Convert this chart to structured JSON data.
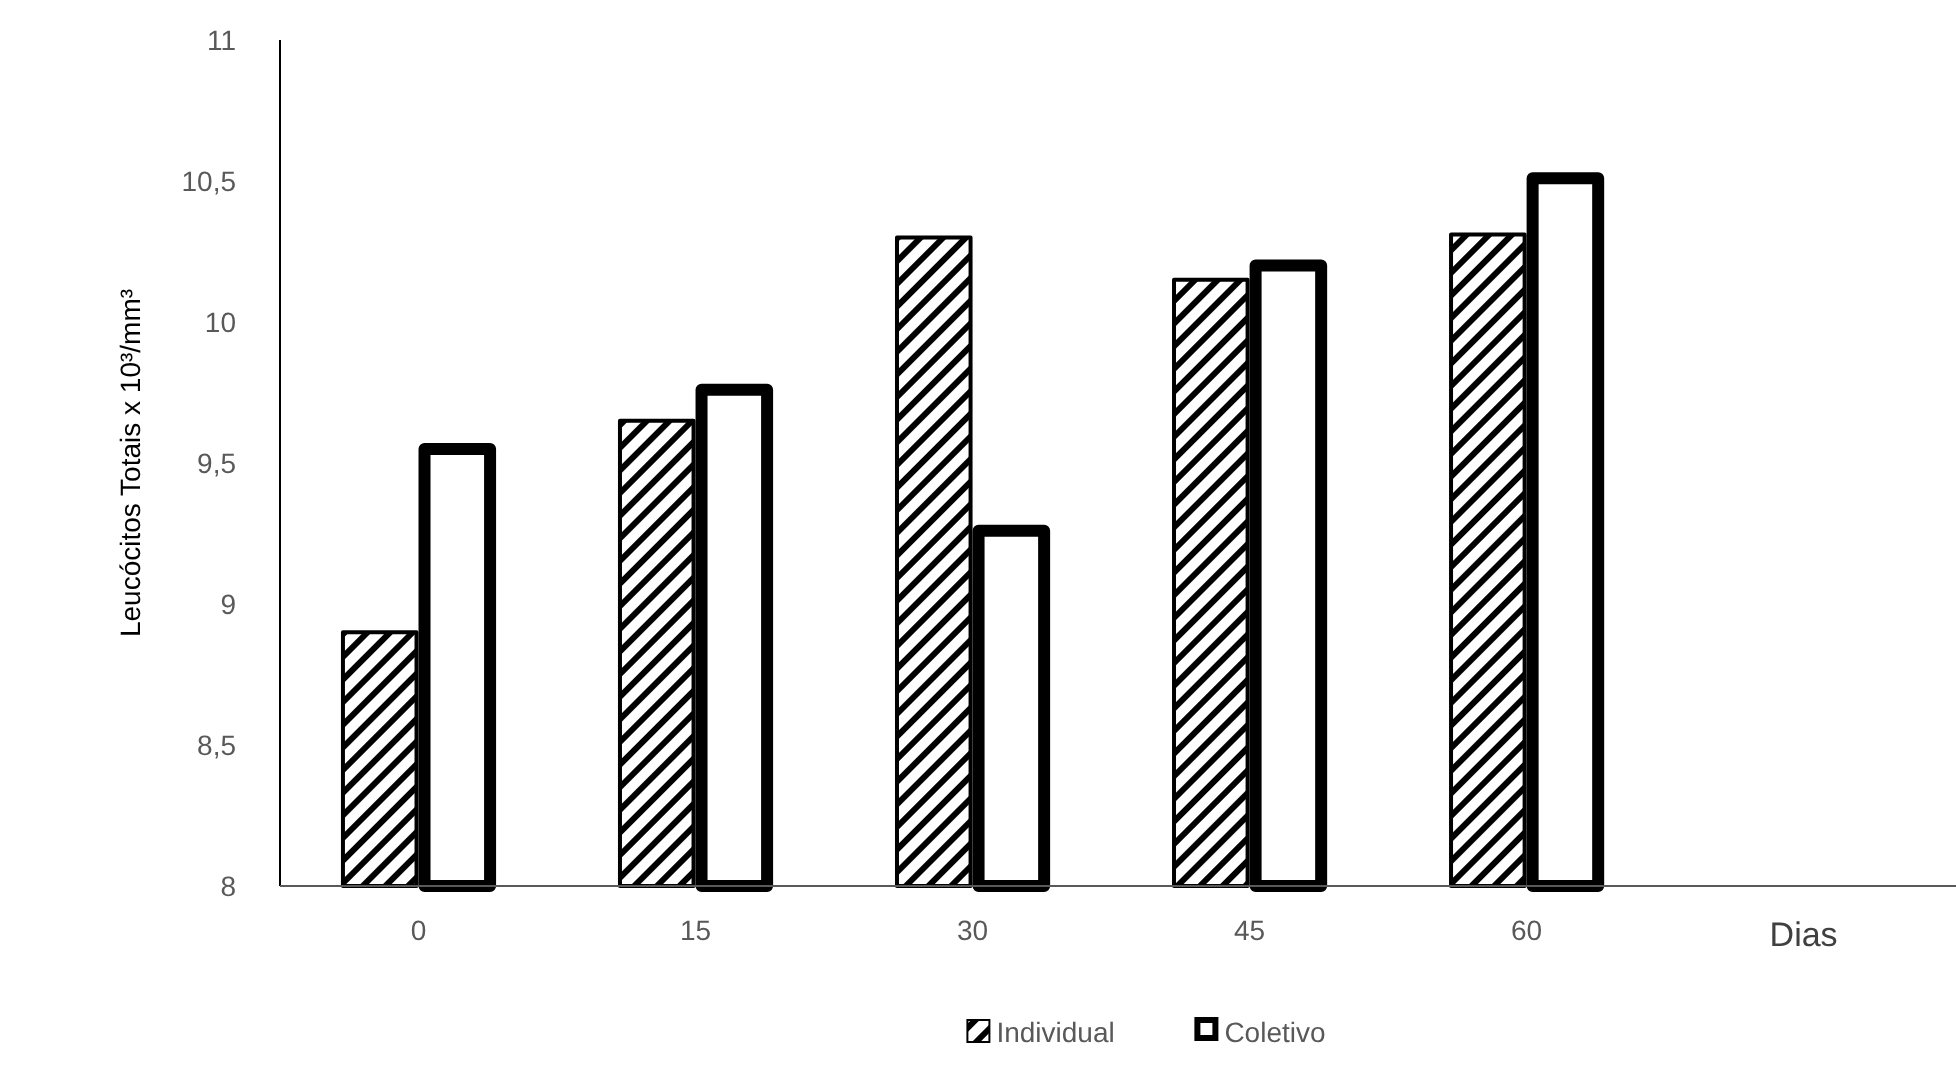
{
  "chart_data": {
    "type": "bar",
    "xlabel": "Dias",
    "ylabel": "Leucócitos Totais x 10³/mm³",
    "categories": [
      "0",
      "15",
      "30",
      "45",
      "60"
    ],
    "series": [
      {
        "name": "Individual",
        "color": "#000000",
        "values": [
          8.9,
          9.65,
          10.3,
          10.15,
          10.31
        ]
      },
      {
        "name": "Coletivo",
        "color": "#ffffff",
        "values": [
          9.55,
          9.76,
          9.26,
          10.2,
          10.51
        ]
      }
    ],
    "ylim": [
      8,
      11
    ],
    "yticks": [
      8,
      {
        "value": 8.5,
        "label": "8,5"
      },
      9,
      {
        "value": 9.5,
        "label": "9,5"
      },
      10,
      {
        "value": 10.5,
        "label": "10,5"
      },
      11
    ],
    "grid": false,
    "legend": "bottom"
  }
}
